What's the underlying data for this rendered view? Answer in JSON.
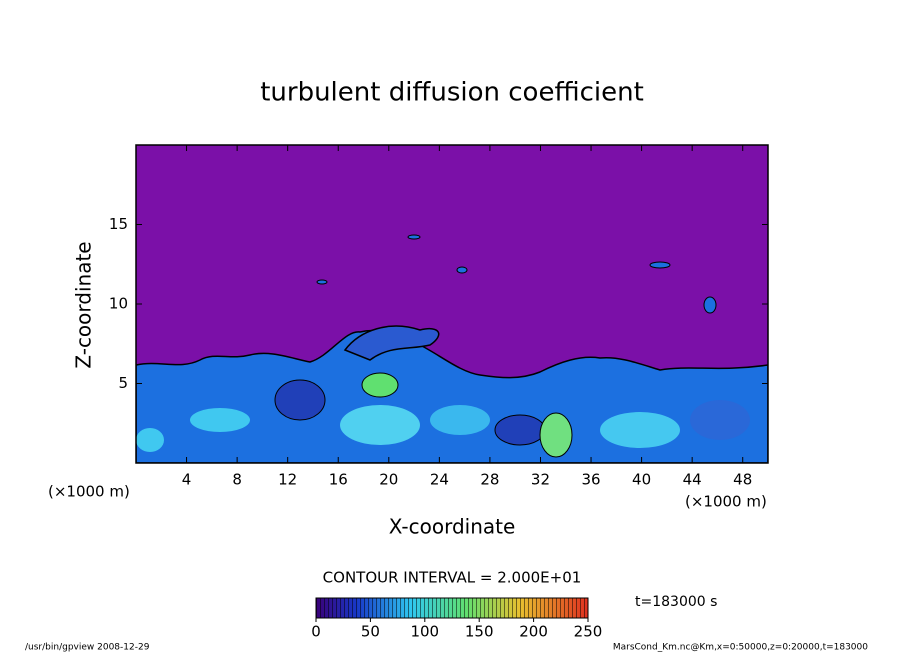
{
  "chart_data": {
    "type": "contour",
    "title": "turbulent diffusion coefficient",
    "xlabel": "X-coordinate",
    "ylabel": "Z-coordinate",
    "x_unit": "(×1000 m)",
    "xlim": [
      0,
      50
    ],
    "xticks": [
      4,
      8,
      12,
      16,
      20,
      24,
      28,
      32,
      36,
      40,
      44,
      48
    ],
    "ylim": [
      0,
      20
    ],
    "yticks": [
      5,
      10,
      15
    ],
    "contour_interval": "CONTOUR INTERVAL = 2.000E+01",
    "colorbar_lim": [
      0,
      250
    ],
    "colorbar_ticks": [
      0,
      50,
      100,
      150,
      200,
      250
    ],
    "time_label": "t=183000 s",
    "footer_left": "/usr/bin/gpview   2008-12-29",
    "footer_right": "MarsCond_Km.nc@Km,x=0:50000,z=0:20000,t=183000"
  }
}
